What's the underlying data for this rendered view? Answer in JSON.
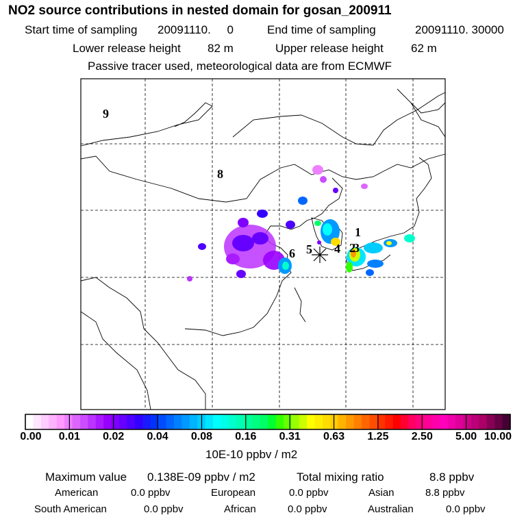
{
  "header": {
    "title": "NO2 source contributions in nested domain for gosan_200911",
    "start_label": "Start time of sampling",
    "start_value": "20091110.     0",
    "end_label": "End time of sampling",
    "end_value": "20091110. 30000",
    "lower_label": "Lower release height",
    "lower_value": "82 m",
    "upper_label": "Upper release height",
    "upper_value": "62 m",
    "subtitle": "Passive tracer used, meteorological data are from ECMWF"
  },
  "chart_data": {
    "type": "heatmap",
    "title": "NO2 source contributions in nested domain for gosan_200911",
    "receptor": "gosan",
    "region_labels": [
      "9",
      "8",
      "1",
      "2",
      "3",
      "4",
      "5",
      "6"
    ],
    "colorbar": {
      "tick_labels": [
        "0.00",
        "0.01",
        "0.02",
        "0.04",
        "0.08",
        "0.16",
        "0.31",
        "0.63",
        "1.25",
        "2.50",
        "5.00",
        "10.00"
      ],
      "unit_label": "10E-10 ppbv / m2",
      "colors": [
        "#ffffff",
        "#ffe6ff",
        "#ffccff",
        "#ffb3ff",
        "#ff99ff",
        "#ee80ff",
        "#dd66ff",
        "#cc4dff",
        "#bb33ff",
        "#aa1aff",
        "#9900ff",
        "#7f00ff",
        "#6600ff",
        "#4d00ff",
        "#3300ff",
        "#1a1aff",
        "#0033ff",
        "#004dff",
        "#0066ff",
        "#0080ff",
        "#0099ff",
        "#00b3ff",
        "#00ccff",
        "#00e6ff",
        "#00ffff",
        "#00ffe6",
        "#00ffcc",
        "#00ffb3",
        "#00ff99",
        "#00ff80",
        "#00ff66",
        "#00ff33",
        "#33ff00",
        "#66ff00",
        "#99ff00",
        "#ccff00",
        "#ffff00",
        "#ffee00",
        "#ffdd00",
        "#ffcc00",
        "#ffb300",
        "#ff9900",
        "#ff8000",
        "#ff6600",
        "#ff4d00",
        "#ff3300",
        "#ff1a00",
        "#ff0000",
        "#ff0033",
        "#ff0066",
        "#ff0080",
        "#ff0099",
        "#ff00aa",
        "#ff00bb",
        "#ee00aa",
        "#dd0099",
        "#cc0088",
        "#bb0077",
        "#aa0066",
        "#880055",
        "#660044",
        "#440033"
      ]
    },
    "grid": true
  },
  "stats": {
    "max_label": "Maximum value",
    "max_value": "0.138E-09 ppbv / m2",
    "total_label": "Total mixing ratio",
    "total_value": "8.8 ppbv",
    "american_label": "American",
    "american_value": "0.0 ppbv",
    "european_label": "European",
    "european_value": "0.0 ppbv",
    "asian_label": "Asian",
    "asian_value": "8.8 ppbv",
    "south_american_label": "South American",
    "south_american_value": "0.0 ppbv",
    "african_label": "African",
    "african_value": "0.0 ppbv",
    "australian_label": "Australian",
    "australian_value": "0.0 ppbv"
  }
}
